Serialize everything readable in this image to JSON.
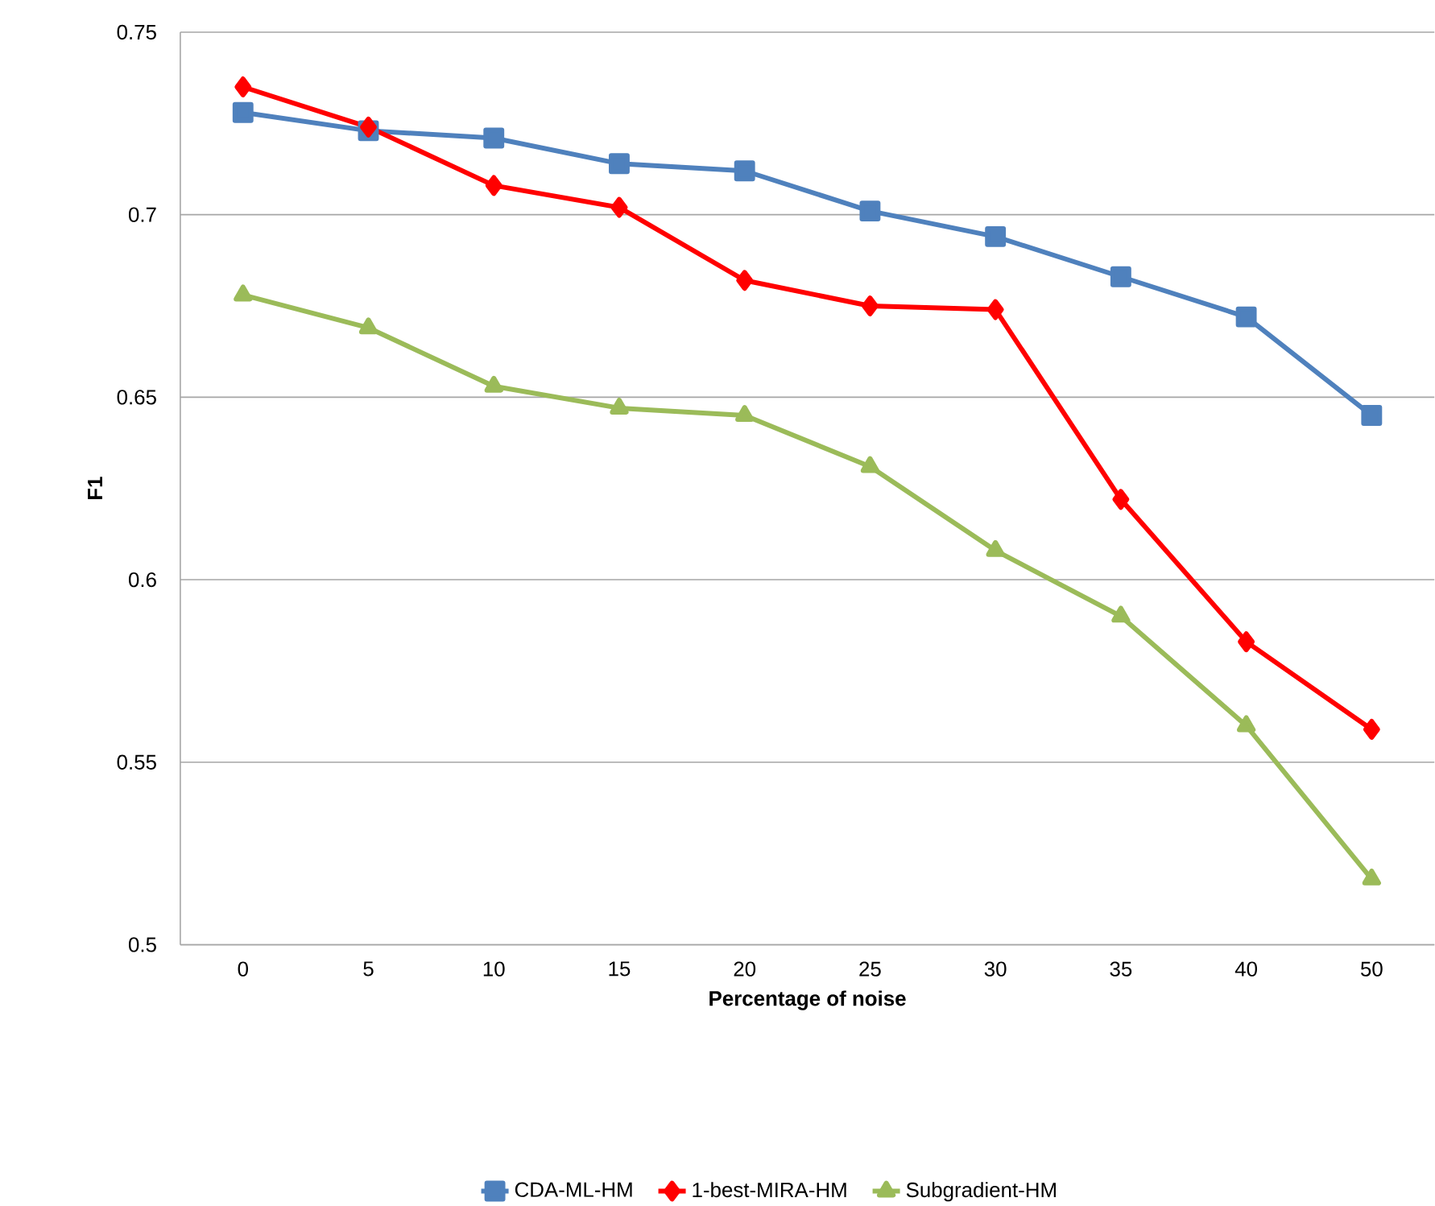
{
  "chart_data": {
    "type": "line",
    "xlabel": "Percentage of noise",
    "ylabel": "F1",
    "categories": [
      "0",
      "5",
      "10",
      "15",
      "20",
      "25",
      "30",
      "35",
      "40",
      "50"
    ],
    "series": [
      {
        "name": "CDA-ML-HM",
        "color": "#4f81bd",
        "marker": "square",
        "values": [
          0.728,
          0.723,
          0.721,
          0.714,
          0.712,
          0.701,
          0.694,
          0.683,
          0.672,
          0.645
        ]
      },
      {
        "name": "1-best-MIRA-HM",
        "color": "#ff0000",
        "marker": "diamond",
        "values": [
          0.735,
          0.724,
          0.708,
          0.702,
          0.682,
          0.675,
          0.674,
          0.622,
          0.583,
          0.559
        ]
      },
      {
        "name": "Subgradient-HM",
        "color": "#9bbb59",
        "marker": "triangle",
        "values": [
          0.678,
          0.669,
          0.653,
          0.647,
          0.645,
          0.631,
          0.608,
          0.59,
          0.56,
          0.518
        ]
      }
    ],
    "ylim": [
      0.5,
      0.75
    ],
    "yticks": [
      0.5,
      0.55,
      0.6,
      0.65,
      0.7,
      0.75
    ],
    "grid": "y",
    "legend": "bottom",
    "line_style": "solid"
  }
}
